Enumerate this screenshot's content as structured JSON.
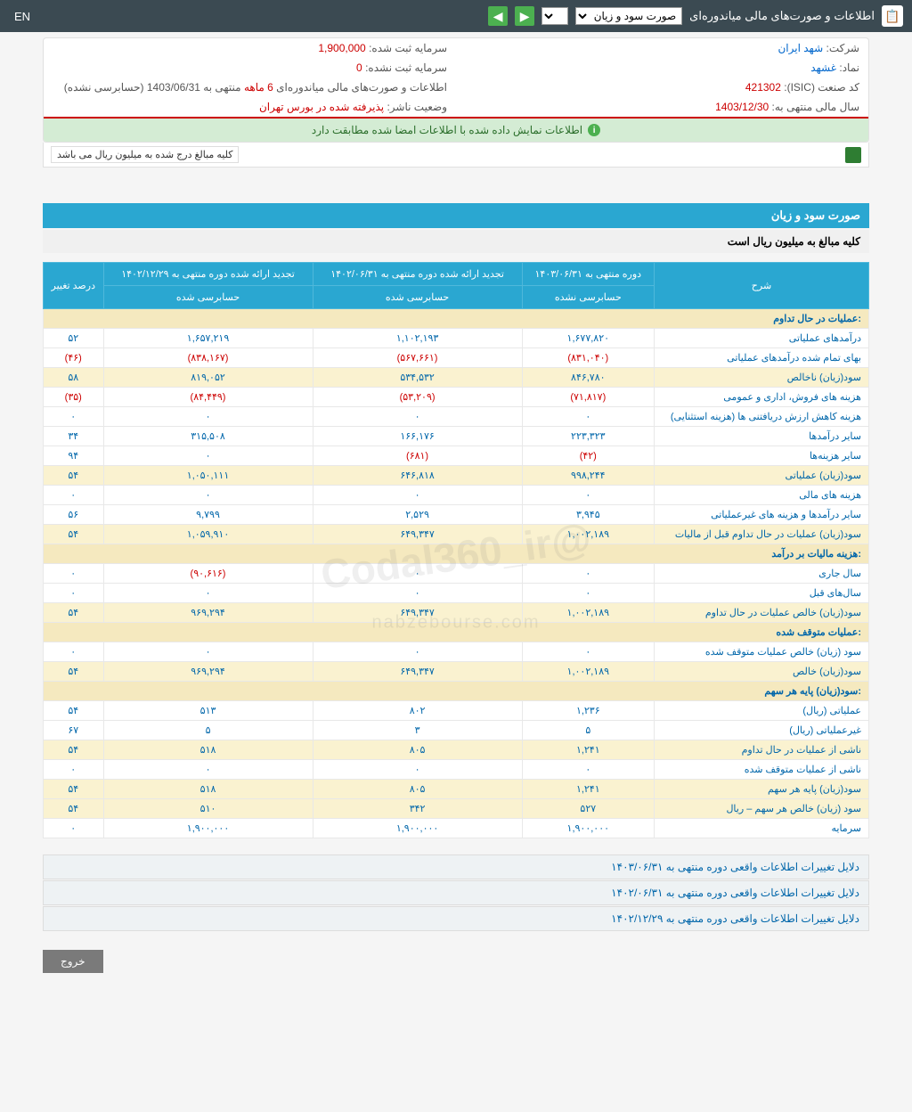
{
  "topbar": {
    "title": "اطلاعات و صورت‌های مالی میاندوره‌ای",
    "dropdown": "صورت سود و زیان",
    "lang": "EN"
  },
  "info": {
    "company_lbl": "شرکت:",
    "company": "شهد ایران",
    "symbol_lbl": "نماد:",
    "symbol": "غشهد",
    "isic_lbl": "کد صنعت (ISIC):",
    "isic": "421302",
    "fy_lbl": "سال مالی منتهی به:",
    "fy": "1403/12/30",
    "cap_reg_lbl": "سرمایه ثبت شده:",
    "cap_reg": "1,900,000",
    "cap_unreg_lbl": "سرمایه ثبت نشده:",
    "cap_unreg": "0",
    "report_lbl": "اطلاعات و صورت‌های مالی میاندوره‌ای",
    "report_period": "6 ماهه",
    "report_end": "منتهی به 1403/06/31 (حسابرسی نشده)",
    "status_lbl": "وضعیت ناشر:",
    "status": "پذیرفته شده در بورس تهران",
    "green_msg": "اطلاعات نمایش داده شده با اطلاعات امضا شده مطابقت دارد",
    "note": "کلیه مبالغ درج شده به میلیون ریال می باشد"
  },
  "section": {
    "title": "صورت سود و زیان",
    "sub": "کلیه مبالغ به میلیون ریال است"
  },
  "headers": {
    "desc": "شرح",
    "c1": "دوره منتهی به ۱۴۰۳/۰۶/۳۱",
    "c1b": "حسابرسی نشده",
    "c2": "تجدید ارائه شده دوره منتهی به ۱۴۰۲/۰۶/۳۱",
    "c2b": "حسابرسی شده",
    "c3": "تجدید ارائه شده دوره منتهی به ۱۴۰۲/۱۲/۲۹",
    "c3b": "حسابرسی شده",
    "c4": "درصد تغییر"
  },
  "rows": [
    {
      "type": "head",
      "desc": "عملیات در حال تداوم:"
    },
    {
      "desc": "درآمدهای عملیاتی",
      "v": [
        "۱,۶۷۷,۸۲۰",
        "۱,۱۰۲,۱۹۳",
        "۱,۶۵۷,۲۱۹",
        "۵۲"
      ],
      "neg": [
        0,
        0,
        0,
        0
      ]
    },
    {
      "desc": "بهای تمام شده درآمدهای عملیاتی",
      "v": [
        "(۸۳۱,۰۴۰)",
        "(۵۶۷,۶۶۱)",
        "(۸۳۸,۱۶۷)",
        "(۴۶)"
      ],
      "neg": [
        1,
        1,
        1,
        1
      ]
    },
    {
      "desc": "سود(زیان) ناخالص",
      "v": [
        "۸۴۶,۷۸۰",
        "۵۳۴,۵۳۲",
        "۸۱۹,۰۵۲",
        "۵۸"
      ],
      "neg": [
        0,
        0,
        0,
        0
      ],
      "hl": 1
    },
    {
      "desc": "هزینه های فروش، اداری و عمومی",
      "v": [
        "(۷۱,۸۱۷)",
        "(۵۳,۲۰۹)",
        "(۸۴,۴۴۹)",
        "(۳۵)"
      ],
      "neg": [
        1,
        1,
        1,
        1
      ]
    },
    {
      "desc": "هزینه کاهش ارزش دریافتنی ها (هزینه استثنایی)",
      "v": [
        "۰",
        "۰",
        "۰",
        "۰"
      ],
      "neg": [
        0,
        0,
        0,
        0
      ]
    },
    {
      "desc": "سایر درآمدها",
      "v": [
        "۲۲۳,۳۲۳",
        "۱۶۶,۱۷۶",
        "۳۱۵,۵۰۸",
        "۳۴"
      ],
      "neg": [
        0,
        0,
        0,
        0
      ]
    },
    {
      "desc": "سایر هزینه‌ها",
      "v": [
        "(۴۲)",
        "(۶۸۱)",
        "۰",
        "۹۴"
      ],
      "neg": [
        1,
        1,
        0,
        0
      ]
    },
    {
      "desc": "سود(زیان) عملیاتی",
      "v": [
        "۹۹۸,۲۴۴",
        "۶۴۶,۸۱۸",
        "۱,۰۵۰,۱۱۱",
        "۵۴"
      ],
      "neg": [
        0,
        0,
        0,
        0
      ],
      "hl": 1
    },
    {
      "desc": "هزینه های مالی",
      "v": [
        "۰",
        "۰",
        "۰",
        "۰"
      ],
      "neg": [
        0,
        0,
        0,
        0
      ]
    },
    {
      "desc": "سایر درآمدها و هزینه های غیرعملیاتی",
      "v": [
        "۳,۹۴۵",
        "۲,۵۲۹",
        "۹,۷۹۹",
        "۵۶"
      ],
      "neg": [
        0,
        0,
        0,
        0
      ]
    },
    {
      "desc": "سود(زیان) عملیات در حال تداوم قبل از مالیات",
      "v": [
        "۱,۰۰۲,۱۸۹",
        "۶۴۹,۳۴۷",
        "۱,۰۵۹,۹۱۰",
        "۵۴"
      ],
      "neg": [
        0,
        0,
        0,
        0
      ],
      "hl": 1
    },
    {
      "type": "head",
      "desc": "هزینه مالیات بر درآمد:"
    },
    {
      "desc": "سال جاری",
      "v": [
        "۰",
        "۰",
        "(۹۰,۶۱۶)",
        "۰"
      ],
      "neg": [
        0,
        0,
        1,
        0
      ]
    },
    {
      "desc": "سال‌های قبل",
      "v": [
        "۰",
        "۰",
        "۰",
        "۰"
      ],
      "neg": [
        0,
        0,
        0,
        0
      ]
    },
    {
      "desc": "سود(زیان) خالص عملیات در حال تداوم",
      "v": [
        "۱,۰۰۲,۱۸۹",
        "۶۴۹,۳۴۷",
        "۹۶۹,۲۹۴",
        "۵۴"
      ],
      "neg": [
        0,
        0,
        0,
        0
      ],
      "hl": 1
    },
    {
      "type": "head",
      "desc": "عملیات متوقف شده:"
    },
    {
      "desc": "سود (زیان) خالص عملیات متوقف شده",
      "v": [
        "۰",
        "۰",
        "۰",
        "۰"
      ],
      "neg": [
        0,
        0,
        0,
        0
      ]
    },
    {
      "desc": "سود(زیان) خالص",
      "v": [
        "۱,۰۰۲,۱۸۹",
        "۶۴۹,۳۴۷",
        "۹۶۹,۲۹۴",
        "۵۴"
      ],
      "neg": [
        0,
        0,
        0,
        0
      ],
      "hl": 1
    },
    {
      "type": "head",
      "desc": "سود(زیان) پایه هر سهم:"
    },
    {
      "desc": "عملیاتی (ریال)",
      "v": [
        "۱,۲۳۶",
        "۸۰۲",
        "۵۱۳",
        "۵۴"
      ],
      "neg": [
        0,
        0,
        0,
        0
      ]
    },
    {
      "desc": "غیرعملیاتی (ریال)",
      "v": [
        "۵",
        "۳",
        "۵",
        "۶۷"
      ],
      "neg": [
        0,
        0,
        0,
        0
      ]
    },
    {
      "desc": "ناشی از عملیات در حال تداوم",
      "v": [
        "۱,۲۴۱",
        "۸۰۵",
        "۵۱۸",
        "۵۴"
      ],
      "neg": [
        0,
        0,
        0,
        0
      ],
      "hl": 1
    },
    {
      "desc": "ناشی از عملیات متوقف شده",
      "v": [
        "۰",
        "۰",
        "۰",
        "۰"
      ],
      "neg": [
        0,
        0,
        0,
        0
      ]
    },
    {
      "desc": "سود(زیان) پایه هر سهم",
      "v": [
        "۱,۲۴۱",
        "۸۰۵",
        "۵۱۸",
        "۵۴"
      ],
      "neg": [
        0,
        0,
        0,
        0
      ],
      "hl": 1
    },
    {
      "desc": "سود (زیان) خالص هر سهم – ریال",
      "v": [
        "۵۲۷",
        "۳۴۲",
        "۵۱۰",
        "۵۴"
      ],
      "neg": [
        0,
        0,
        0,
        0
      ],
      "hl": 1
    },
    {
      "desc": "سرمایه",
      "v": [
        "۱,۹۰۰,۰۰۰",
        "۱,۹۰۰,۰۰۰",
        "۱,۹۰۰,۰۰۰",
        "۰"
      ],
      "neg": [
        0,
        0,
        0,
        0
      ]
    }
  ],
  "footers": [
    "دلایل تغییرات اطلاعات واقعی دوره منتهی به ۱۴۰۳/۰۶/۳۱",
    "دلایل تغییرات اطلاعات واقعی دوره منتهی به ۱۴۰۲/۰۶/۳۱",
    "دلایل تغییرات اطلاعات واقعی دوره منتهی به ۱۴۰۲/۱۲/۲۹"
  ],
  "exit": "خروج",
  "wm1": "@Codal360_ir",
  "wm2": "nabzebourse.com"
}
